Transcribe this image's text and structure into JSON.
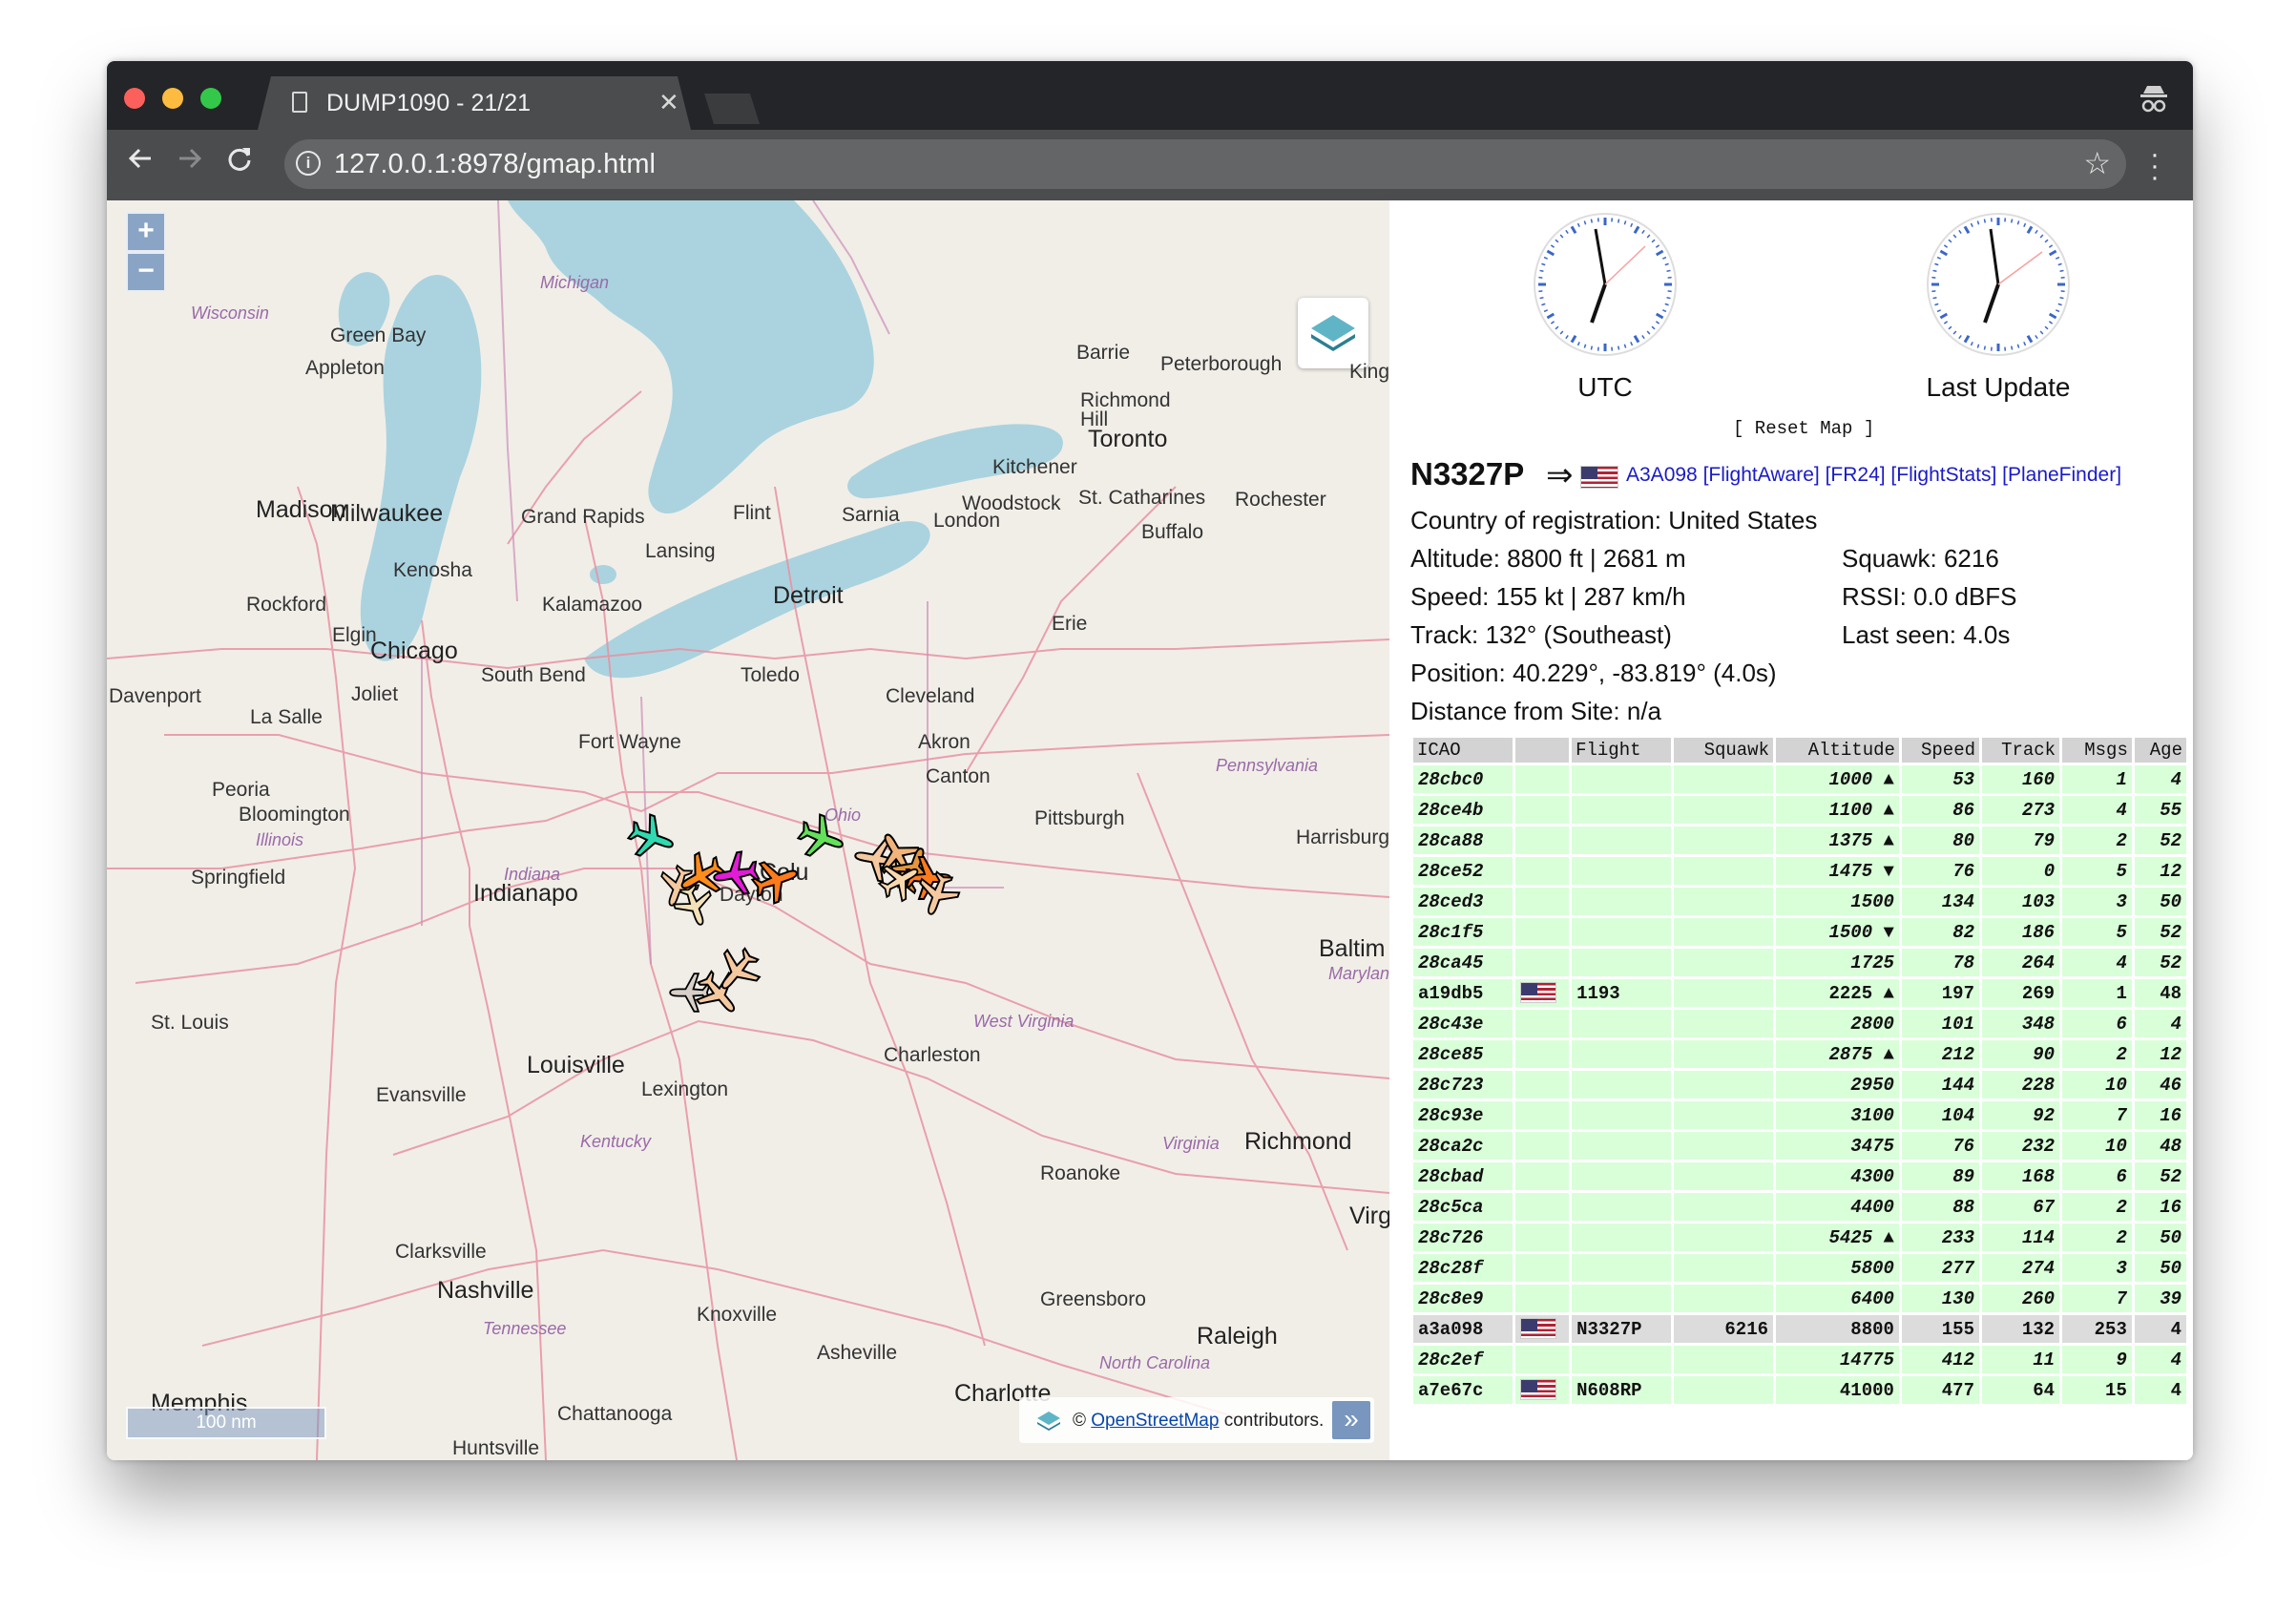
{
  "browser": {
    "tab_title": "DUMP1090 - 21/21",
    "url": "127.0.0.1:8978/gmap.html"
  },
  "map": {
    "zoom_in": "+",
    "zoom_out": "−",
    "scale_label": "100 nm",
    "attribution_prefix": "©",
    "attribution_link": "OpenStreetMap",
    "attribution_suffix": "contributors.",
    "attribution_toggle": "»",
    "places": [
      {
        "name": "Wisconsin",
        "kind": "state"
      },
      {
        "name": "Michigan",
        "kind": "state"
      },
      {
        "name": "Green Bay",
        "kind": "city"
      },
      {
        "name": "Appleton",
        "kind": "city"
      },
      {
        "name": "Barrie",
        "kind": "city"
      },
      {
        "name": "Peterborough",
        "kind": "city"
      },
      {
        "name": "Kings",
        "kind": "city"
      },
      {
        "name": "Richmond Hill",
        "kind": "city"
      },
      {
        "name": "Toronto",
        "kind": "big"
      },
      {
        "name": "Kitchener",
        "kind": "city"
      },
      {
        "name": "Woodstock",
        "kind": "city"
      },
      {
        "name": "St. Catharines",
        "kind": "city"
      },
      {
        "name": "Rochester",
        "kind": "city"
      },
      {
        "name": "London",
        "kind": "city"
      },
      {
        "name": "Buffalo",
        "kind": "city"
      },
      {
        "name": "Madison",
        "kind": "big"
      },
      {
        "name": "Milwaukee",
        "kind": "big"
      },
      {
        "name": "Grand Rapids",
        "kind": "city"
      },
      {
        "name": "Flint",
        "kind": "city"
      },
      {
        "name": "Sarnia",
        "kind": "city"
      },
      {
        "name": "Lansing",
        "kind": "city"
      },
      {
        "name": "Kenosha",
        "kind": "city"
      },
      {
        "name": "Detroit",
        "kind": "big"
      },
      {
        "name": "Rockford",
        "kind": "city"
      },
      {
        "name": "Kalamazoo",
        "kind": "city"
      },
      {
        "name": "Elgin",
        "kind": "city"
      },
      {
        "name": "Chicago",
        "kind": "big"
      },
      {
        "name": "Erie",
        "kind": "city"
      },
      {
        "name": "South Bend",
        "kind": "city"
      },
      {
        "name": "Toledo",
        "kind": "city"
      },
      {
        "name": "Cleveland",
        "kind": "city"
      },
      {
        "name": "Davenport",
        "kind": "city"
      },
      {
        "name": "Joliet",
        "kind": "city"
      },
      {
        "name": "La Salle",
        "kind": "city"
      },
      {
        "name": "Fort Wayne",
        "kind": "city"
      },
      {
        "name": "Akron",
        "kind": "city"
      },
      {
        "name": "Pennsylvania",
        "kind": "state"
      },
      {
        "name": "Canton",
        "kind": "city"
      },
      {
        "name": "Peoria",
        "kind": "city"
      },
      {
        "name": "Bloomington",
        "kind": "city"
      },
      {
        "name": "Ohio",
        "kind": "state"
      },
      {
        "name": "Pittsburgh",
        "kind": "city"
      },
      {
        "name": "Illinois",
        "kind": "state"
      },
      {
        "name": "Harrisburg",
        "kind": "city"
      },
      {
        "name": "Springfield",
        "kind": "city"
      },
      {
        "name": "Indiana",
        "kind": "state"
      },
      {
        "name": "Indianapo",
        "kind": "big"
      },
      {
        "name": "Dayton",
        "kind": "city"
      },
      {
        "name": "Colu",
        "kind": "big"
      },
      {
        "name": "Baltim",
        "kind": "big"
      },
      {
        "name": "Maryland",
        "kind": "state"
      },
      {
        "name": "St. Louis",
        "kind": "city"
      },
      {
        "name": "West Virginia",
        "kind": "state"
      },
      {
        "name": "Louisville",
        "kind": "big"
      },
      {
        "name": "Charleston",
        "kind": "city"
      },
      {
        "name": "Evansville",
        "kind": "city"
      },
      {
        "name": "Lexington",
        "kind": "city"
      },
      {
        "name": "Kentucky",
        "kind": "state"
      },
      {
        "name": "Virginia",
        "kind": "state"
      },
      {
        "name": "Richmond",
        "kind": "big"
      },
      {
        "name": "Roanoke",
        "kind": "city"
      },
      {
        "name": "Virg",
        "kind": "big"
      },
      {
        "name": "Clarksville",
        "kind": "city"
      },
      {
        "name": "Nashville",
        "kind": "big"
      },
      {
        "name": "Tennessee",
        "kind": "state"
      },
      {
        "name": "Knoxville",
        "kind": "city"
      },
      {
        "name": "Greensboro",
        "kind": "city"
      },
      {
        "name": "Raleigh",
        "kind": "big"
      },
      {
        "name": "North Carolina",
        "kind": "state"
      },
      {
        "name": "Asheville",
        "kind": "city"
      },
      {
        "name": "Memphis",
        "kind": "big"
      },
      {
        "name": "Chattanooga",
        "kind": "city"
      },
      {
        "name": "Charlotte",
        "kind": "big"
      },
      {
        "name": "Huntsville",
        "kind": "city"
      }
    ]
  },
  "clocks": {
    "utc_label": "UTC",
    "last_update_label": "Last Update",
    "reset_map": "[ Reset Map ]"
  },
  "selected": {
    "callsign": "N3327P",
    "arrow": "⇒",
    "links": "A3A098 [FlightAware]  [FR24]  [FlightStats]  [PlaneFinder]",
    "country": "Country of registration: United States",
    "altitude": "Altitude: 8800 ft | 2681 m",
    "squawk": "Squawk: 6216",
    "speed": "Speed: 155 kt | 287 km/h",
    "rssi": "RSSI: 0.0 dBFS",
    "track": "Track: 132° (Southeast)",
    "last_seen": "Last seen: 4.0s",
    "position": "Position: 40.229°, -83.819° (4.0s)",
    "distance": "Distance from Site: n/a"
  },
  "table": {
    "headers": [
      "ICAO",
      "",
      "Flight",
      "Squawk",
      "Altitude",
      "Speed",
      "Track",
      "Msgs",
      "Age"
    ],
    "rows": [
      {
        "icao": "28cbc0",
        "flag": false,
        "flight": "",
        "squawk": "",
        "altitude": "1000 ▲",
        "speed": "53",
        "track": "160",
        "msgs": "1",
        "age": "4"
      },
      {
        "icao": "28ce4b",
        "flag": false,
        "flight": "",
        "squawk": "",
        "altitude": "1100 ▲",
        "speed": "86",
        "track": "273",
        "msgs": "4",
        "age": "55"
      },
      {
        "icao": "28ca88",
        "flag": false,
        "flight": "",
        "squawk": "",
        "altitude": "1375 ▲",
        "speed": "80",
        "track": "79",
        "msgs": "2",
        "age": "52"
      },
      {
        "icao": "28ce52",
        "flag": false,
        "flight": "",
        "squawk": "",
        "altitude": "1475 ▼",
        "speed": "76",
        "track": "0",
        "msgs": "5",
        "age": "12"
      },
      {
        "icao": "28ced3",
        "flag": false,
        "flight": "",
        "squawk": "",
        "altitude": "1500",
        "speed": "134",
        "track": "103",
        "msgs": "3",
        "age": "50"
      },
      {
        "icao": "28c1f5",
        "flag": false,
        "flight": "",
        "squawk": "",
        "altitude": "1500 ▼",
        "speed": "82",
        "track": "186",
        "msgs": "5",
        "age": "52"
      },
      {
        "icao": "28ca45",
        "flag": false,
        "flight": "",
        "squawk": "",
        "altitude": "1725",
        "speed": "78",
        "track": "264",
        "msgs": "4",
        "age": "52"
      },
      {
        "icao": "a19db5",
        "flag": true,
        "flight": "1193",
        "squawk": "",
        "altitude": "2225 ▲",
        "speed": "197",
        "track": "269",
        "msgs": "1",
        "age": "48",
        "style": "plain"
      },
      {
        "icao": "28c43e",
        "flag": false,
        "flight": "",
        "squawk": "",
        "altitude": "2800",
        "speed": "101",
        "track": "348",
        "msgs": "6",
        "age": "4"
      },
      {
        "icao": "28ce85",
        "flag": false,
        "flight": "",
        "squawk": "",
        "altitude": "2875 ▲",
        "speed": "212",
        "track": "90",
        "msgs": "2",
        "age": "12"
      },
      {
        "icao": "28c723",
        "flag": false,
        "flight": "",
        "squawk": "",
        "altitude": "2950",
        "speed": "144",
        "track": "228",
        "msgs": "10",
        "age": "46"
      },
      {
        "icao": "28c93e",
        "flag": false,
        "flight": "",
        "squawk": "",
        "altitude": "3100",
        "speed": "104",
        "track": "92",
        "msgs": "7",
        "age": "16"
      },
      {
        "icao": "28ca2c",
        "flag": false,
        "flight": "",
        "squawk": "",
        "altitude": "3475",
        "speed": "76",
        "track": "232",
        "msgs": "10",
        "age": "48"
      },
      {
        "icao": "28cbad",
        "flag": false,
        "flight": "",
        "squawk": "",
        "altitude": "4300",
        "speed": "89",
        "track": "168",
        "msgs": "6",
        "age": "52"
      },
      {
        "icao": "28c5ca",
        "flag": false,
        "flight": "",
        "squawk": "",
        "altitude": "4400",
        "speed": "88",
        "track": "67",
        "msgs": "2",
        "age": "16"
      },
      {
        "icao": "28c726",
        "flag": false,
        "flight": "",
        "squawk": "",
        "altitude": "5425 ▲",
        "speed": "233",
        "track": "114",
        "msgs": "2",
        "age": "50"
      },
      {
        "icao": "28c28f",
        "flag": false,
        "flight": "",
        "squawk": "",
        "altitude": "5800",
        "speed": "277",
        "track": "274",
        "msgs": "3",
        "age": "50"
      },
      {
        "icao": "28c8e9",
        "flag": false,
        "flight": "",
        "squawk": "",
        "altitude": "6400",
        "speed": "130",
        "track": "260",
        "msgs": "7",
        "age": "39"
      },
      {
        "icao": "a3a098",
        "flag": true,
        "flight": "N3327P",
        "squawk": "6216",
        "altitude": "8800",
        "speed": "155",
        "track": "132",
        "msgs": "253",
        "age": "4",
        "style": "sel"
      },
      {
        "icao": "28c2ef",
        "flag": false,
        "flight": "",
        "squawk": "",
        "altitude": "14775",
        "speed": "412",
        "track": "11",
        "msgs": "9",
        "age": "4"
      },
      {
        "icao": "a7e67c",
        "flag": true,
        "flight": "N608RP",
        "squawk": "",
        "altitude": "41000",
        "speed": "477",
        "track": "64",
        "msgs": "15",
        "age": "4",
        "style": "plain"
      }
    ]
  },
  "colors": {
    "row_bg": "#d9ffd9",
    "selected_row_bg": "#dcdcdc",
    "link": "#1a1ac8",
    "water": "#aad3df",
    "land": "#f1eee8"
  },
  "icons": {
    "back": "arrow-left-icon",
    "forward": "arrow-right-icon",
    "reload": "reload-icon",
    "info": "info-icon",
    "star": "star-icon",
    "menu": "kebab-menu-icon",
    "layers": "layers-icon",
    "incognito": "incognito-icon",
    "page": "document-icon"
  }
}
